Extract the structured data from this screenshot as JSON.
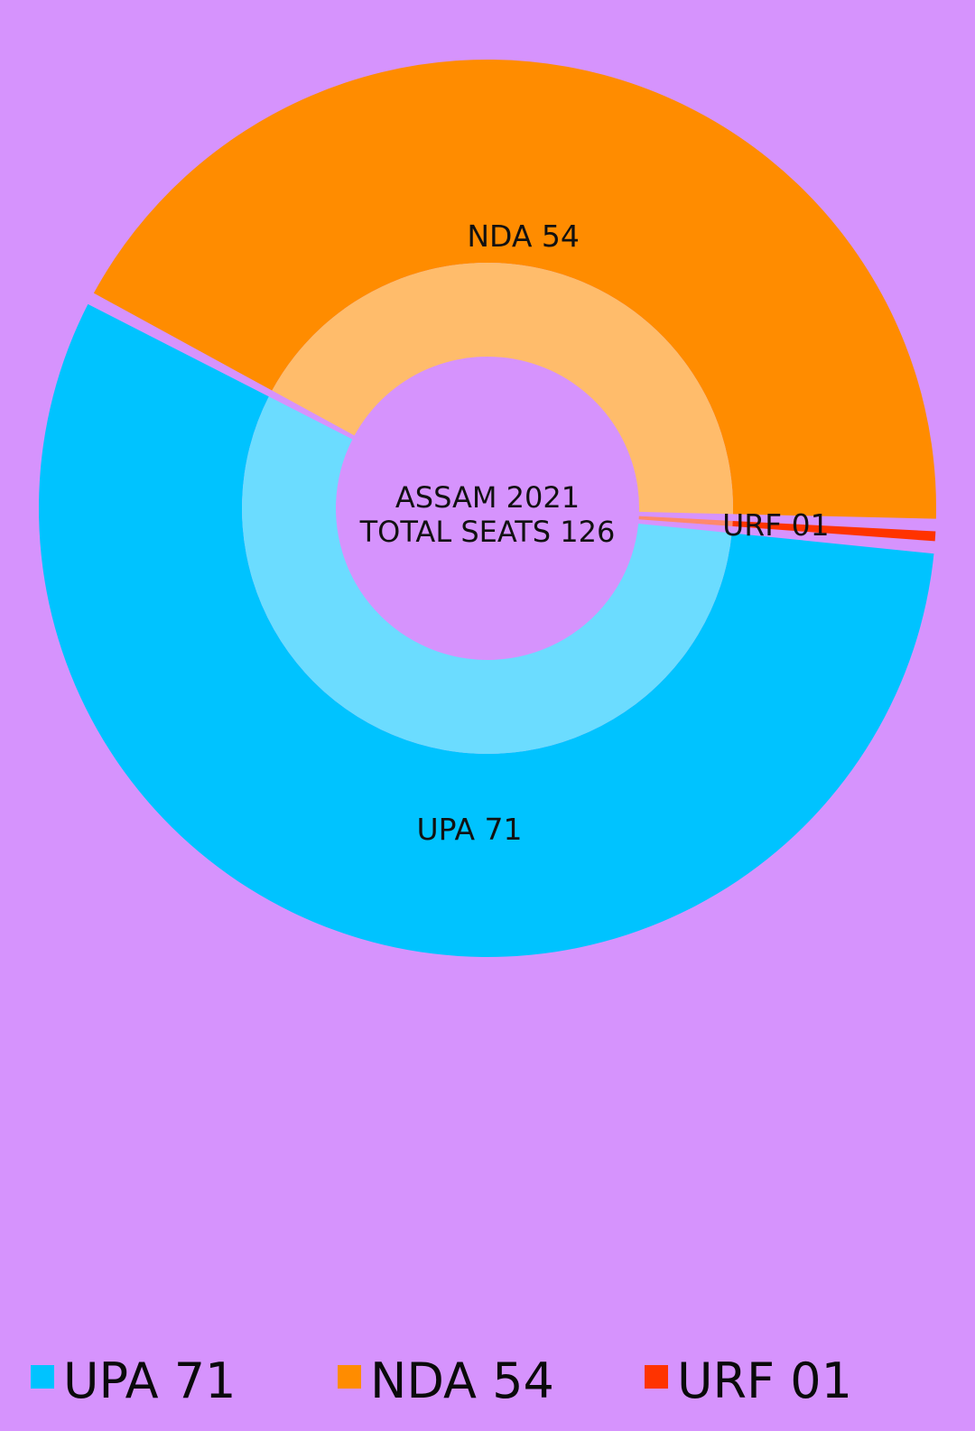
{
  "colors": {
    "background": "#d693fd",
    "UPA": "#00c3ff",
    "NDA": "#ff8c00",
    "URF": "#ff3300"
  },
  "chart_data": {
    "type": "pie",
    "style": "donut",
    "center_text": [
      "ASSAM 2021",
      "TOTAL SEATS 126"
    ],
    "total": 126,
    "slices": [
      {
        "name": "UPA",
        "value": 71,
        "label": "UPA 71",
        "color": "#00c3ff"
      },
      {
        "name": "NDA",
        "value": 54,
        "label": "NDA 54",
        "color": "#ff8c00"
      },
      {
        "name": "URF",
        "value": 1,
        "label": "URF 01",
        "color": "#ff3300"
      }
    ],
    "legend": {
      "position": "bottom",
      "entries": [
        "UPA 71",
        "NDA 54",
        "URF 01"
      ]
    }
  }
}
